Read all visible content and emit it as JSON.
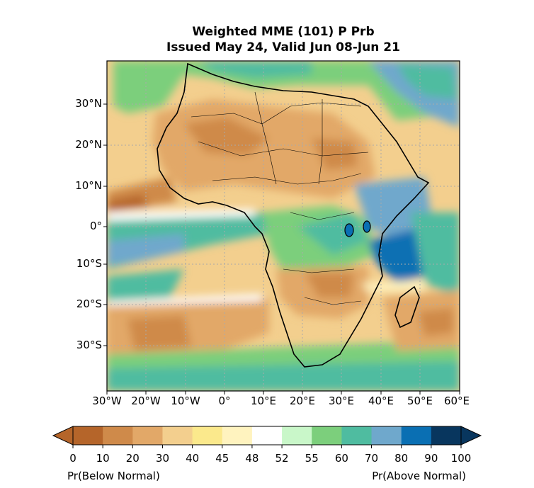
{
  "title": {
    "line1": "Weighted MME (101) P Prb",
    "line2": "Issued May 24, Valid Jun 08-Jun 21"
  },
  "map": {
    "region": "Africa",
    "lat_ticks": [
      "30°N",
      "20°N",
      "10°N",
      "0°",
      "10°S",
      "20°S",
      "30°S"
    ],
    "lon_ticks": [
      "30°W",
      "20°W",
      "10°W",
      "0°",
      "10°E",
      "20°E",
      "30°E",
      "40°E",
      "50°E",
      "60°E"
    ],
    "lat_range": [
      -40,
      40
    ],
    "lon_range": [
      -30,
      60
    ],
    "gridlines": true
  },
  "colorbar": {
    "ticks": [
      "0",
      "10",
      "20",
      "30",
      "40",
      "45",
      "48",
      "52",
      "55",
      "60",
      "70",
      "80",
      "90",
      "100"
    ],
    "colors": [
      "#b5652a",
      "#cf8a4a",
      "#e2a868",
      "#f3cf8e",
      "#fbe98c",
      "#fff3bf",
      "#ffffff",
      "#c9f7c9",
      "#7ccf7c",
      "#4fbca0",
      "#6fa8cc",
      "#0a6fb3",
      "#08365e"
    ],
    "left_caption": "Pr(Below Normal)",
    "right_caption": "Pr(Above Normal)"
  }
}
